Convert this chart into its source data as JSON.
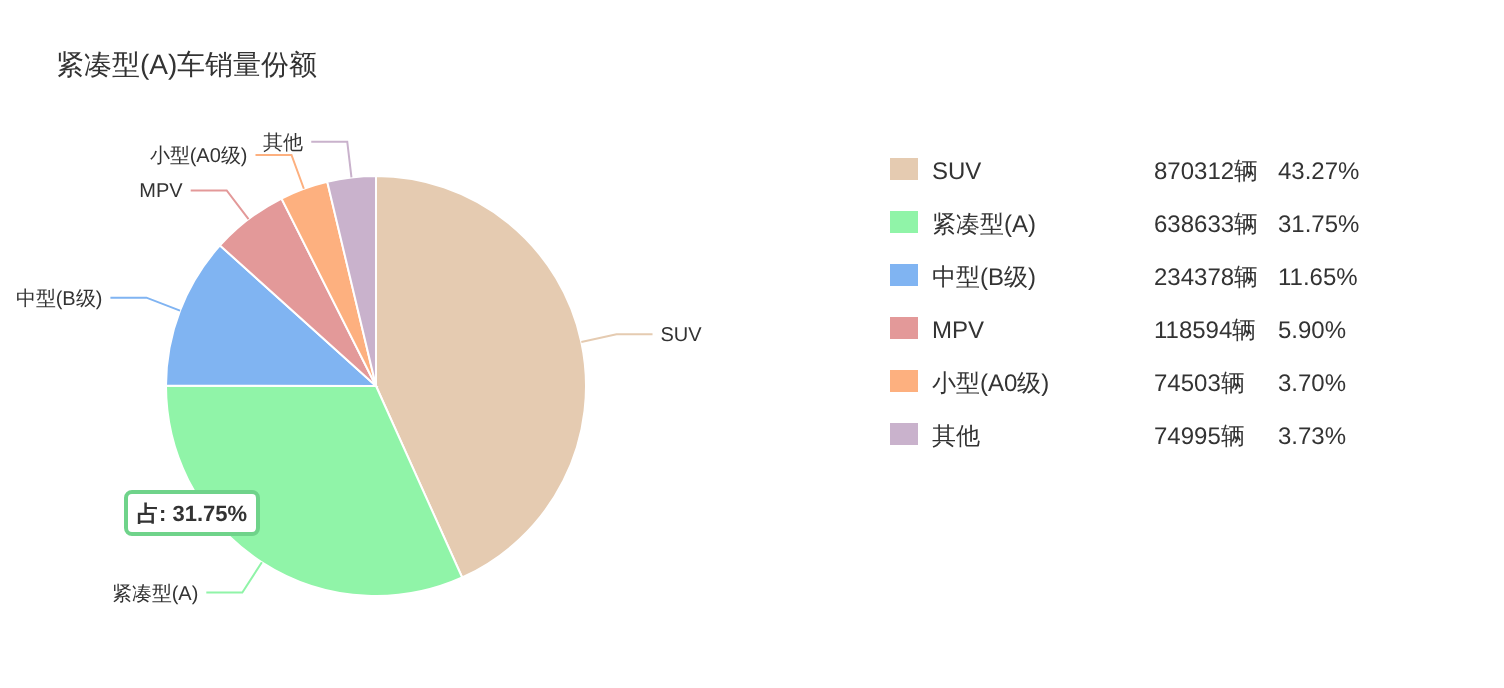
{
  "chart_data": {
    "type": "pie",
    "title": "紧凑型(A)车销量份额",
    "categories": [
      "SUV",
      "紧凑型(A)",
      "中型(B级)",
      "MPV",
      "小型(A0级)",
      "其他"
    ],
    "values": [
      870312,
      638633,
      234378,
      118594,
      74503,
      74995
    ],
    "colors": [
      "#e5cbb1",
      "#90f4a8",
      "#80b4f2",
      "#e39999",
      "#fdb07f",
      "#c9b2cc"
    ],
    "value_labels": [
      "870312辆 43.27%",
      "638633辆 31.75%",
      "234378辆 11.65%",
      "118594辆 5.90%",
      "74503辆 3.70%",
      "74995辆 3.73%"
    ],
    "legend": "right",
    "annotations": [
      "占: 31.75%"
    ]
  }
}
